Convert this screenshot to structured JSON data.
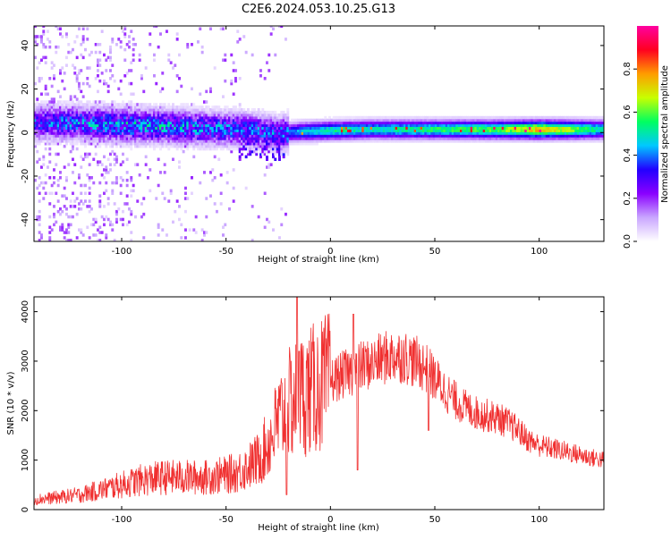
{
  "title": "C2E6.2024.053.10.25.G13",
  "chart_data": [
    {
      "type": "heatmap",
      "xlabel": "Height of straight line (km)",
      "ylabel": "Frequency (Hz)",
      "xlim": [
        -142,
        131
      ],
      "ylim": [
        -50,
        49
      ],
      "x_ticks": [
        -100,
        -50,
        0,
        50,
        100
      ],
      "x_tick_labels": [
        "-100",
        "-50",
        "0",
        "50",
        "100"
      ],
      "y_ticks": [
        -40,
        -20,
        0,
        20,
        40
      ],
      "y_tick_labels": [
        "-40",
        "-20",
        "0",
        "20",
        "40"
      ],
      "colorbar": {
        "label": "Normalized spectral amplitude",
        "range": [
          0,
          1
        ],
        "ticks": [
          0.0,
          0.2,
          0.4,
          0.6,
          0.8
        ],
        "tick_labels": [
          "0.0",
          "0.2",
          "0.4",
          "0.6",
          "0.8"
        ],
        "colormap": [
          "#ffffff",
          "#c9a6ff",
          "#8a00ff",
          "#2200ff",
          "#00c8ff",
          "#00ff60",
          "#c8ff00",
          "#ff9c00",
          "#ff0020",
          "#ff00a0"
        ]
      },
      "ridge": [
        {
          "x": -140,
          "f": 4,
          "amp": 0.3
        },
        {
          "x": -120,
          "f": 4,
          "amp": 0.35
        },
        {
          "x": -100,
          "f": 3,
          "amp": 0.38
        },
        {
          "x": -80,
          "f": 2.5,
          "amp": 0.38
        },
        {
          "x": -60,
          "f": 1.5,
          "amp": 0.35
        },
        {
          "x": -40,
          "f": 1,
          "amp": 0.33
        },
        {
          "x": -25,
          "f": -1,
          "amp": 0.32
        },
        {
          "x": -15,
          "f": 0,
          "amp": 0.45
        },
        {
          "x": 0,
          "f": 0.5,
          "amp": 0.52
        },
        {
          "x": 20,
          "f": 1,
          "amp": 0.5
        },
        {
          "x": 50,
          "f": 1,
          "amp": 0.55
        },
        {
          "x": 80,
          "f": 1,
          "amp": 0.6
        },
        {
          "x": 100,
          "f": 1,
          "amp": 0.75
        },
        {
          "x": 131,
          "f": 1,
          "amp": 0.5
        }
      ]
    },
    {
      "type": "line",
      "xlabel": "Height of straight line (km)",
      "ylabel": "SNR (10 * v/v)",
      "xlim": [
        -142,
        131
      ],
      "ylim": [
        0,
        4300
      ],
      "x_ticks": [
        -100,
        -50,
        0,
        50,
        100
      ],
      "x_tick_labels": [
        "-100",
        "-50",
        "0",
        "50",
        "100"
      ],
      "y_ticks": [
        0,
        1000,
        2000,
        3000,
        4000
      ],
      "y_tick_labels": [
        "0",
        "1000",
        "2000",
        "3000",
        "4000"
      ],
      "color": "#f03030",
      "series": [
        {
          "x": [
            -142,
            -130,
            -120,
            -110,
            -100,
            -90,
            -80,
            -70,
            -60,
            -50,
            -45,
            -40,
            -35,
            -30,
            -25,
            -20,
            -15,
            -10,
            -5,
            0,
            5,
            10,
            15,
            20,
            25,
            30,
            35,
            40,
            45,
            50,
            55,
            60,
            65,
            70,
            75,
            80,
            85,
            90,
            95,
            100,
            105,
            110,
            115,
            120,
            125,
            131
          ],
          "y": [
            200,
            250,
            300,
            400,
            500,
            600,
            650,
            650,
            650,
            700,
            750,
            850,
            1000,
            1300,
            1800,
            2100,
            2300,
            2400,
            2500,
            2600,
            2700,
            2800,
            2900,
            2950,
            3050,
            3100,
            3100,
            3000,
            2900,
            2650,
            2400,
            2200,
            2050,
            1950,
            1900,
            1850,
            1750,
            1600,
            1400,
            1300,
            1250,
            1200,
            1150,
            1100,
            1050,
            1000
          ]
        }
      ],
      "spikes": [
        {
          "x": -21,
          "y": 300
        },
        {
          "x": -16,
          "y": 4300
        },
        {
          "x": -15,
          "y": 3200
        },
        {
          "x": 11,
          "y": 3950
        },
        {
          "x": 13,
          "y": 800
        },
        {
          "x": 47,
          "y": 1600
        }
      ]
    }
  ]
}
